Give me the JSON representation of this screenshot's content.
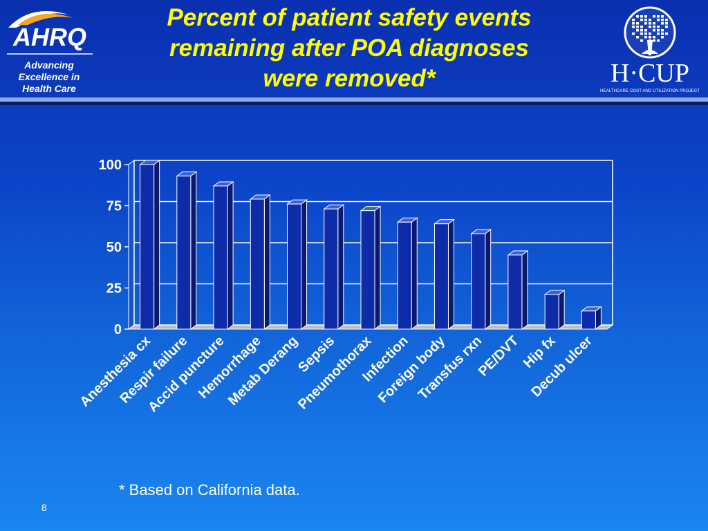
{
  "header": {
    "title_lines": [
      "Percent of patient safety events",
      "remaining after POA diagnoses",
      "were removed*"
    ],
    "ahrq_logo_text": "AHRQ",
    "ahrq_tagline_lines": [
      "Advancing",
      "Excellence in",
      "Health Care"
    ],
    "hcup_logo_text": "H·CUP",
    "hcup_tagline": "HEALTHCARE COST AND UTILIZATION PROJECT"
  },
  "colors": {
    "bar_front": "#0e2ba8",
    "bar_side": "#08196e",
    "bar_top": "#3d62d6",
    "bar_outline": "#ffffff",
    "title": "#ffff00"
  },
  "chart_data": {
    "type": "bar",
    "categories": [
      "Anesthesia cx",
      "Respir failure",
      "Accid puncture",
      "Hemorrhage",
      "Metab Derang",
      "Sepsis",
      "Pneumothorax",
      "Infection",
      "Foreign body",
      "Transfus rxn",
      "PE/DVT",
      "Hip fx",
      "Decub ulcer"
    ],
    "values": [
      100,
      93,
      87,
      79,
      76,
      73,
      72,
      65,
      64,
      58,
      45,
      21,
      11
    ],
    "yticks": [
      0,
      25,
      50,
      75,
      100
    ],
    "ylim": [
      0,
      100
    ],
    "grid": true,
    "legend": "none"
  },
  "footnote": "* Based on California data.",
  "page_number": "8"
}
